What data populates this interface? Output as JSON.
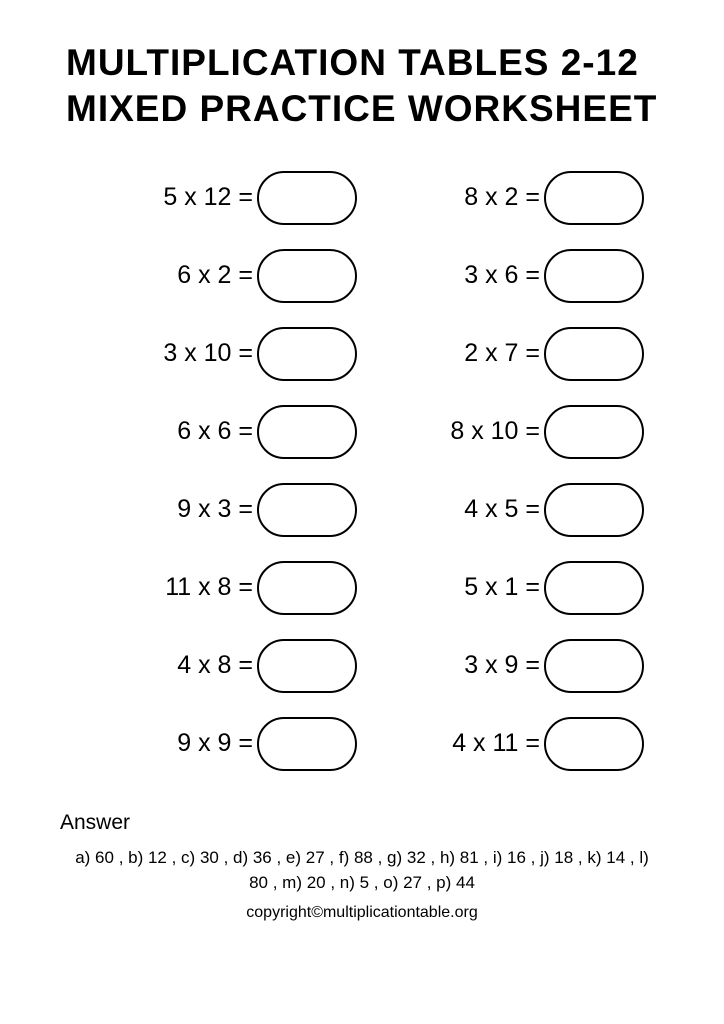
{
  "title_line1": "MULTIPLICATION TABLES 2-12",
  "title_line2": "MIXED PRACTICE WORKSHEET",
  "problems": {
    "left": [
      "5 x 12 =",
      "6 x 2 =",
      "3 x 10 =",
      "6 x 6 =",
      "9 x 3 =",
      "11 x 8 =",
      "4 x 8 =",
      "9 x 9 ="
    ],
    "right": [
      "8 x 2 =",
      "3 x 6 =",
      "2 x 7 =",
      "8 x 10 =",
      "4 x 5 =",
      "5 x 1 =",
      "3 x 9 =",
      "4 x 11 ="
    ]
  },
  "answer_label": "Answer",
  "answer_text": "a) 60 , b) 12 , c) 30 , d) 36 , e) 27 , f) 88 , g) 32 , h) 81 , i) 16 , j) 18 , k) 14 , l) 80 , m) 20 , n) 5 , o) 27 , p) 44",
  "copyright": "copyright©multiplicationtable.org",
  "colors": {
    "background": "#ffffff",
    "text": "#000000",
    "bubble_border": "#000000"
  },
  "bubble_style": {
    "width": 100,
    "height": 54,
    "border_width": 2.5,
    "border_radius": 27
  },
  "fonts": {
    "title_size": 37,
    "title_weight": 900,
    "expr_size": 25,
    "answer_label_size": 21,
    "answer_text_size": 17,
    "copyright_size": 16
  }
}
